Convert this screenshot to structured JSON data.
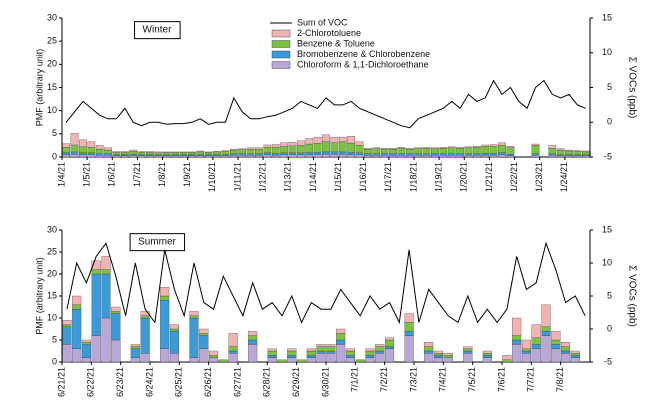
{
  "chart_data": [
    {
      "type": "bar",
      "stacked": true,
      "title": "Winter",
      "ylabel": "PMF (arbitrary unit)",
      "y2label": "Σ VOCs (ppb)",
      "ylim": [
        0,
        30
      ],
      "yticks": [
        0,
        5,
        10,
        15,
        20,
        25,
        30
      ],
      "y2lim": [
        -5,
        15
      ],
      "y2ticks": [
        -5,
        0,
        5,
        10,
        15
      ],
      "categories": [
        "1/4/21",
        null,
        null,
        "1/5/21",
        null,
        null,
        "1/6/21",
        null,
        null,
        "1/7/21",
        null,
        null,
        "1/8/21",
        null,
        null,
        "1/9/21",
        null,
        null,
        "1/10/21",
        null,
        null,
        "1/11/21",
        null,
        null,
        "1/12/21",
        null,
        null,
        "1/13/21",
        null,
        null,
        "1/14/21",
        null,
        null,
        "1/15/21",
        null,
        null,
        "1/16/21",
        null,
        null,
        "1/17/21",
        null,
        null,
        "1/18/21",
        null,
        null,
        "1/19/21",
        null,
        null,
        "1/20/21",
        null,
        null,
        "1/21/21",
        null,
        null,
        "1/22/21",
        null,
        null,
        "1/23/21",
        null,
        null,
        "1/24/21",
        null,
        null
      ],
      "series": [
        {
          "name": "Sum of VOC",
          "type": "line",
          "axis": "y2",
          "color": "#000000",
          "values": [
            0,
            1.5,
            3,
            2,
            1,
            0.5,
            0.5,
            2,
            0,
            -0.5,
            0,
            0,
            -0.3,
            -0.2,
            -0.2,
            0,
            0.5,
            -0.3,
            0,
            0,
            3.5,
            1.5,
            0.5,
            0.5,
            0.8,
            1,
            1.5,
            2,
            3,
            2.5,
            2,
            3.5,
            2.5,
            2.5,
            3,
            2,
            1.5,
            1,
            0.5,
            0,
            -0.5,
            -0.8,
            0.5,
            1,
            1.5,
            2,
            3,
            2,
            4,
            3,
            3.5,
            6,
            4,
            5,
            3,
            2,
            5,
            6,
            4,
            3.5,
            4,
            2.5,
            2
          ]
        },
        {
          "name": "2-Chlorotoluene",
          "color": "#f2b3b3",
          "values": [
            0.8,
            2.5,
            1.5,
            1.2,
            0.8,
            0.5,
            0.2,
            0.2,
            0.3,
            0.2,
            0.2,
            0.2,
            0.1,
            0.1,
            0.1,
            0.1,
            0.2,
            0.1,
            0.1,
            0.2,
            0.2,
            0.2,
            0.3,
            0.3,
            0.5,
            0.6,
            0.8,
            0.8,
            1,
            1.2,
            1.3,
            1.5,
            1.2,
            1,
            1.5,
            0.8,
            0.2,
            0.2,
            0.2,
            0.2,
            0.2,
            0.2,
            0.2,
            0.2,
            0.2,
            0.2,
            0.2,
            0.2,
            0.2,
            0.2,
            0.3,
            0.4,
            0.6,
            0.3,
            0,
            0,
            0.3,
            0,
            0.6,
            0.3,
            0.2,
            0.2,
            0.2
          ]
        },
        {
          "name": "Benzene & Toluene",
          "color": "#7cc242",
          "values": [
            1.2,
            1.5,
            1.3,
            1.2,
            1,
            0.8,
            0.5,
            0.5,
            0.6,
            0.5,
            0.5,
            0.4,
            0.5,
            0.5,
            0.5,
            0.5,
            0.6,
            0.5,
            0.6,
            0.7,
            0.8,
            0.9,
            1,
            1,
            1.2,
            1.3,
            1.4,
            1.5,
            1.6,
            1.8,
            2,
            2.2,
            2,
            2.2,
            2,
            1.6,
            1,
            1.1,
            1,
            1,
            1.2,
            1,
            1.1,
            1.2,
            1.1,
            1.2,
            1.3,
            1.2,
            1.3,
            1.4,
            1.5,
            1.5,
            1.6,
            1.4,
            0,
            0,
            1.8,
            0,
            1.2,
            1,
            0.8,
            0.7,
            0.6
          ]
        },
        {
          "name": "Bromobenzene & Chlorobenzene",
          "color": "#3b9ad8",
          "values": [
            0.4,
            0.5,
            0.4,
            0.4,
            0.3,
            0.3,
            0.2,
            0.2,
            0.2,
            0.2,
            0.2,
            0.2,
            0.2,
            0.2,
            0.2,
            0.2,
            0.2,
            0.2,
            0.2,
            0.2,
            0.3,
            0.3,
            0.3,
            0.3,
            0.4,
            0.4,
            0.4,
            0.4,
            0.4,
            0.5,
            0.5,
            0.5,
            0.5,
            0.5,
            0.5,
            0.4,
            0.3,
            0.3,
            0.3,
            0.3,
            0.3,
            0.3,
            0.3,
            0.3,
            0.3,
            0.3,
            0.3,
            0.3,
            0.3,
            0.3,
            0.4,
            0.4,
            0.4,
            0.3,
            0,
            0,
            0.3,
            0,
            0.3,
            0.2,
            0.2,
            0.2,
            0.2
          ]
        },
        {
          "name": "Chloroform & 1,1-Dichloroethane",
          "color": "#b9a7d8",
          "values": [
            0.5,
            0.6,
            0.5,
            0.5,
            0.4,
            0.4,
            0.3,
            0.3,
            0.4,
            0.3,
            0.3,
            0.3,
            0.3,
            0.3,
            0.3,
            0.3,
            0.3,
            0.3,
            0.3,
            0.3,
            0.4,
            0.4,
            0.4,
            0.4,
            0.5,
            0.4,
            0.5,
            0.5,
            0.5,
            0.5,
            0.5,
            0.6,
            0.6,
            0.6,
            0.5,
            0.5,
            0.4,
            0.4,
            0.4,
            0.4,
            0.4,
            0.4,
            0.4,
            0.4,
            0.4,
            0.4,
            0.4,
            0.4,
            0.4,
            0.4,
            0.4,
            0.4,
            0.5,
            0.3,
            0,
            0,
            0.4,
            0,
            0.4,
            0.3,
            0.3,
            0.3,
            0.3
          ]
        }
      ]
    },
    {
      "type": "bar",
      "stacked": true,
      "title": "Summer",
      "ylabel": "PMF (arbitrary unit)",
      "y2label": "Σ VOCs (ppb)",
      "ylim": [
        0,
        30
      ],
      "yticks": [
        0,
        5,
        10,
        15,
        20,
        25,
        30
      ],
      "y2lim": [
        -5,
        15
      ],
      "y2ticks": [
        -5,
        0,
        5,
        10,
        15
      ],
      "categories": [
        "6/21/21",
        null,
        null,
        "6/22/21",
        null,
        null,
        "6/23/21",
        null,
        null,
        "6/24/21",
        null,
        null,
        "6/25/21",
        null,
        null,
        "6/26/21",
        null,
        null,
        "6/27/21",
        null,
        null,
        "6/28/21",
        null,
        null,
        "6/29/21",
        null,
        null,
        "6/30/21",
        null,
        null,
        "7/1/21",
        null,
        null,
        "7/2/21",
        null,
        null,
        "7/3/21",
        null,
        null,
        "7/4/21",
        null,
        null,
        "7/5/21",
        null,
        null,
        "7/6/21",
        null,
        null,
        "7/7/21",
        null,
        null,
        "7/8/21",
        null,
        null
      ],
      "series": [
        {
          "type": "line",
          "axis": "y2",
          "color": "#000000",
          "values": [
            3,
            10,
            7,
            11,
            13,
            8,
            2,
            10,
            3,
            1,
            12,
            6,
            2,
            10,
            4,
            3,
            8,
            5,
            2,
            7,
            3,
            4,
            2,
            5,
            1,
            4,
            3,
            3,
            6,
            4,
            2,
            5,
            3,
            4,
            1,
            12,
            1,
            6,
            4,
            2,
            1,
            5,
            1,
            3,
            1,
            3,
            11,
            6,
            7,
            13,
            9,
            4,
            5,
            2
          ]
        },
        {
          "color": "#f2b3b3",
          "values": [
            1,
            2,
            0.5,
            2,
            3,
            1,
            0,
            0.5,
            1,
            0,
            2,
            1,
            0,
            1,
            1,
            1,
            0,
            3,
            0,
            1,
            0,
            0.5,
            0,
            0.5,
            0,
            0.5,
            0.5,
            0.5,
            1,
            0.5,
            0,
            0.5,
            0.5,
            0.5,
            0,
            2,
            0,
            1,
            0.5,
            0.5,
            0,
            0.5,
            0,
            0.5,
            0,
            1,
            4,
            2,
            3,
            5,
            2,
            1,
            0.5,
            0
          ]
        },
        {
          "color": "#7cc242",
          "values": [
            0.5,
            1,
            0.5,
            1,
            1,
            0.5,
            0,
            0.5,
            0.5,
            0,
            1,
            0.5,
            0,
            0.5,
            0.5,
            0.5,
            0.5,
            1,
            0,
            1,
            0,
            1,
            0.5,
            1,
            0.5,
            1,
            1,
            1,
            1.5,
            1,
            0.5,
            1,
            1,
            1.5,
            0,
            2,
            0,
            1,
            0.5,
            0.5,
            0,
            0.5,
            0,
            0.5,
            0,
            0.5,
            1,
            0.5,
            1.5,
            1,
            1,
            1,
            0.5,
            0
          ]
        },
        {
          "color": "#3b9ad8",
          "values": [
            4,
            9,
            3,
            14,
            10,
            6,
            0,
            2,
            8,
            0,
            11,
            5,
            0,
            9,
            3,
            0,
            0,
            0.5,
            0,
            1,
            0,
            0.5,
            0,
            0.5,
            0,
            0.5,
            0.5,
            0.5,
            1,
            0.5,
            0,
            0.5,
            0.5,
            0.5,
            0,
            1,
            0,
            0.5,
            0.5,
            0,
            0,
            0.5,
            0,
            0.5,
            0,
            0,
            1,
            0.5,
            1,
            1,
            1,
            0.5,
            0.5,
            0
          ]
        },
        {
          "color": "#b9a7d8",
          "values": [
            4,
            3,
            1,
            6,
            10,
            5,
            0,
            1,
            2,
            0,
            3,
            2,
            0,
            1,
            3,
            1,
            0,
            2,
            0,
            4,
            0,
            1,
            0,
            1,
            0,
            1,
            2,
            2,
            4,
            1,
            0,
            1,
            2,
            3,
            0,
            6,
            0,
            2,
            1,
            1,
            0,
            2,
            0,
            1,
            0,
            0,
            4,
            2,
            3,
            6,
            3,
            2,
            1,
            0
          ]
        }
      ]
    }
  ]
}
